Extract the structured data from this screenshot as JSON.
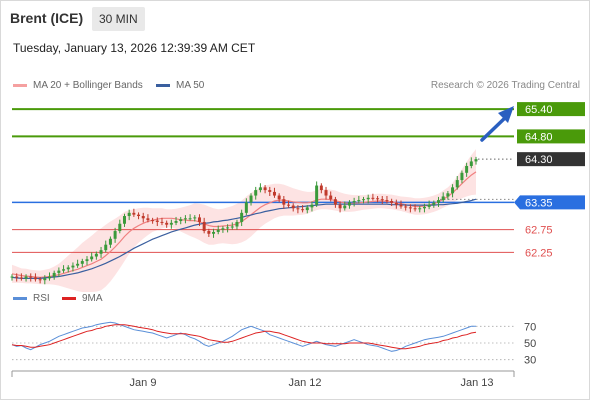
{
  "header": {
    "instrument": "Brent (ICE)",
    "timeframe": "30 MIN",
    "timestamp": "Tuesday, January 13, 2026 12:39:39 AM CET"
  },
  "legend": {
    "ma20_label": "MA 20 + Bollinger Bands",
    "ma50_label": "MA 50",
    "credit": "Research © 2026 Trading Central"
  },
  "rsi_legend": {
    "rsi_label": "RSI",
    "ma_label": "9MA"
  },
  "colors": {
    "bull": "#3a9a3a",
    "bear": "#c0392b",
    "ma20": "#f08080",
    "ma50": "#3a5f9f",
    "bollinger_fill": "#fde3e3",
    "resistance": "#4a9a0a",
    "support_blue": "#2a6fe0",
    "support_red": "#e05050",
    "arrow": "#2a5fc0",
    "rsi": "#5a8fd8",
    "rsi_ma": "#dd2222"
  },
  "chart_data": [
    {
      "type": "candlestick",
      "x_ticks": [
        "Jan 9",
        "Jan 12",
        "Jan 13"
      ],
      "y_range": [
        61.6,
        65.6
      ],
      "levels": [
        {
          "label": "65.40",
          "value": 65.4,
          "kind": "resistance"
        },
        {
          "label": "64.80",
          "value": 64.8,
          "kind": "resistance"
        },
        {
          "label": "64.30",
          "value": 64.3,
          "kind": "last"
        },
        {
          "label": "63.35",
          "value": 63.35,
          "kind": "pivot"
        },
        {
          "label": "62.75",
          "value": 62.75,
          "kind": "support"
        },
        {
          "label": "62.25",
          "value": 62.25,
          "kind": "support"
        }
      ],
      "close": [
        61.72,
        61.7,
        61.68,
        61.72,
        61.7,
        61.66,
        61.64,
        61.68,
        61.72,
        61.8,
        61.85,
        61.88,
        61.92,
        61.96,
        62.0,
        62.06,
        62.1,
        62.16,
        62.22,
        62.3,
        62.42,
        62.55,
        62.72,
        62.88,
        63.05,
        63.12,
        63.08,
        63.05,
        63.0,
        62.96,
        62.95,
        62.92,
        62.9,
        62.86,
        62.9,
        62.94,
        62.98,
        63.0,
        63.0,
        63.02,
        62.92,
        62.72,
        62.66,
        62.7,
        62.75,
        62.78,
        62.8,
        62.82,
        62.92,
        63.12,
        63.35,
        63.5,
        63.62,
        63.68,
        63.62,
        63.58,
        63.5,
        63.42,
        63.3,
        63.28,
        63.22,
        63.2,
        63.18,
        63.24,
        63.3,
        63.72,
        63.62,
        63.5,
        63.42,
        63.3,
        63.22,
        63.28,
        63.35,
        63.38,
        63.4,
        63.42,
        63.45,
        63.44,
        63.42,
        63.4,
        63.38,
        63.34,
        63.3,
        63.26,
        63.24,
        63.22,
        63.2,
        63.22,
        63.25,
        63.3,
        63.34,
        63.4,
        63.48,
        63.55,
        63.68,
        63.84,
        64.0,
        64.15,
        64.25,
        64.3
      ],
      "ma20": [
        61.78,
        61.76,
        61.74,
        61.73,
        61.72,
        61.71,
        61.7,
        61.71,
        61.72,
        61.74,
        61.76,
        61.79,
        61.82,
        61.85,
        61.88,
        61.92,
        61.96,
        62.0,
        62.05,
        62.1,
        62.18,
        62.27,
        62.37,
        62.48,
        62.6,
        62.7,
        62.78,
        62.84,
        62.89,
        62.93,
        62.96,
        62.98,
        63.0,
        63.0,
        63.0,
        62.99,
        62.97,
        62.96,
        62.95,
        62.95,
        62.92,
        62.88,
        62.84,
        62.82,
        62.82,
        62.83,
        62.84,
        62.85,
        62.88,
        62.93,
        63.0,
        63.08,
        63.16,
        63.24,
        63.3,
        63.34,
        63.38,
        63.4,
        63.4,
        63.38,
        63.36,
        63.35,
        63.34,
        63.34,
        63.36,
        63.4,
        63.42,
        63.42,
        63.41,
        63.39,
        63.36,
        63.34,
        63.33,
        63.33,
        63.34,
        63.35,
        63.36,
        63.37,
        63.38,
        63.38,
        63.37,
        63.36,
        63.34,
        63.32,
        63.3,
        63.28,
        63.26,
        63.26,
        63.27,
        63.29,
        63.32,
        63.36,
        63.42,
        63.48,
        63.56,
        63.66,
        63.76,
        63.86,
        63.95,
        64.02
      ],
      "ma50": [
        61.7,
        61.69,
        61.68,
        61.68,
        61.68,
        61.68,
        61.68,
        61.69,
        61.7,
        61.71,
        61.72,
        61.74,
        61.76,
        61.78,
        61.8,
        61.83,
        61.86,
        61.89,
        61.93,
        61.97,
        62.01,
        62.06,
        62.11,
        62.16,
        62.22,
        62.28,
        62.34,
        62.39,
        62.44,
        62.49,
        62.54,
        62.58,
        62.62,
        62.66,
        62.7,
        62.73,
        62.76,
        62.79,
        62.82,
        62.85,
        62.87,
        62.89,
        62.9,
        62.92,
        62.93,
        62.95,
        62.96,
        62.98,
        63.0,
        63.02,
        63.05,
        63.07,
        63.1,
        63.12,
        63.15,
        63.17,
        63.19,
        63.21,
        63.22,
        63.23,
        63.24,
        63.25,
        63.26,
        63.27,
        63.28,
        63.29,
        63.3,
        63.31,
        63.31,
        63.31,
        63.31,
        63.31,
        63.31,
        63.31,
        63.31,
        63.31,
        63.31,
        63.31,
        63.31,
        63.31,
        63.31,
        63.3,
        63.3,
        63.3,
        63.29,
        63.29,
        63.29,
        63.29,
        63.29,
        63.29,
        63.29,
        63.3,
        63.3,
        63.31,
        63.32,
        63.33,
        63.35,
        63.37,
        63.39,
        63.42
      ],
      "bb_width": [
        0.2,
        0.18,
        0.16,
        0.16,
        0.15,
        0.15,
        0.15,
        0.16,
        0.17,
        0.2,
        0.24,
        0.3,
        0.36,
        0.42,
        0.48,
        0.54,
        0.58,
        0.62,
        0.66,
        0.68,
        0.68,
        0.66,
        0.62,
        0.58,
        0.54,
        0.48,
        0.42,
        0.38,
        0.34,
        0.3,
        0.26,
        0.24,
        0.22,
        0.2,
        0.2,
        0.22,
        0.26,
        0.3,
        0.34,
        0.38,
        0.4,
        0.42,
        0.42,
        0.4,
        0.38,
        0.38,
        0.4,
        0.42,
        0.44,
        0.46,
        0.48,
        0.48,
        0.46,
        0.44,
        0.42,
        0.4,
        0.38,
        0.36,
        0.34,
        0.32,
        0.3,
        0.28,
        0.26,
        0.24,
        0.22,
        0.22,
        0.22,
        0.22,
        0.22,
        0.22,
        0.21,
        0.2,
        0.19,
        0.18,
        0.17,
        0.16,
        0.16,
        0.16,
        0.16,
        0.16,
        0.16,
        0.16,
        0.16,
        0.16,
        0.17,
        0.18,
        0.18,
        0.18,
        0.18,
        0.18,
        0.18,
        0.18,
        0.19,
        0.2,
        0.22,
        0.26,
        0.32,
        0.38,
        0.44,
        0.5
      ]
    },
    {
      "type": "line",
      "name": "RSI",
      "y_ticks": [
        70,
        50,
        30
      ],
      "y_range": [
        20,
        80
      ],
      "rsi": [
        48,
        46,
        47,
        44,
        42,
        45,
        48,
        50,
        52,
        55,
        58,
        60,
        62,
        64,
        66,
        68,
        69,
        70,
        72,
        73,
        74,
        75,
        74,
        72,
        70,
        68,
        66,
        65,
        64,
        63,
        62,
        60,
        58,
        56,
        58,
        60,
        62,
        60,
        57,
        55,
        52,
        48,
        46,
        48,
        50,
        52,
        55,
        58,
        62,
        66,
        68,
        70,
        68,
        66,
        64,
        60,
        58,
        56,
        54,
        52,
        50,
        48,
        46,
        48,
        50,
        52,
        50,
        48,
        47,
        46,
        48,
        50,
        52,
        54,
        52,
        50,
        48,
        47,
        46,
        44,
        42,
        40,
        41,
        43,
        46,
        48,
        50,
        52,
        54,
        55,
        56,
        57,
        58,
        60,
        62,
        64,
        66,
        68,
        70,
        70
      ],
      "ma9": [
        48,
        47,
        47,
        46,
        45,
        45,
        46,
        47,
        48,
        50,
        52,
        54,
        56,
        58,
        60,
        62,
        64,
        65,
        67,
        68,
        70,
        71,
        72,
        72,
        72,
        71,
        70,
        69,
        68,
        67,
        66,
        64,
        63,
        62,
        61,
        61,
        61,
        61,
        60,
        59,
        58,
        56,
        54,
        53,
        52,
        51,
        51,
        52,
        54,
        56,
        58,
        60,
        62,
        63,
        64,
        64,
        63,
        62,
        60,
        58,
        56,
        54,
        52,
        51,
        50,
        50,
        50,
        49,
        49,
        49,
        49,
        49,
        50,
        50,
        50,
        50,
        50,
        49,
        48,
        47,
        46,
        45,
        44,
        43,
        43,
        44,
        45,
        46,
        48,
        49,
        50,
        51,
        53,
        54,
        56,
        57,
        59,
        60,
        62,
        63
      ]
    }
  ]
}
